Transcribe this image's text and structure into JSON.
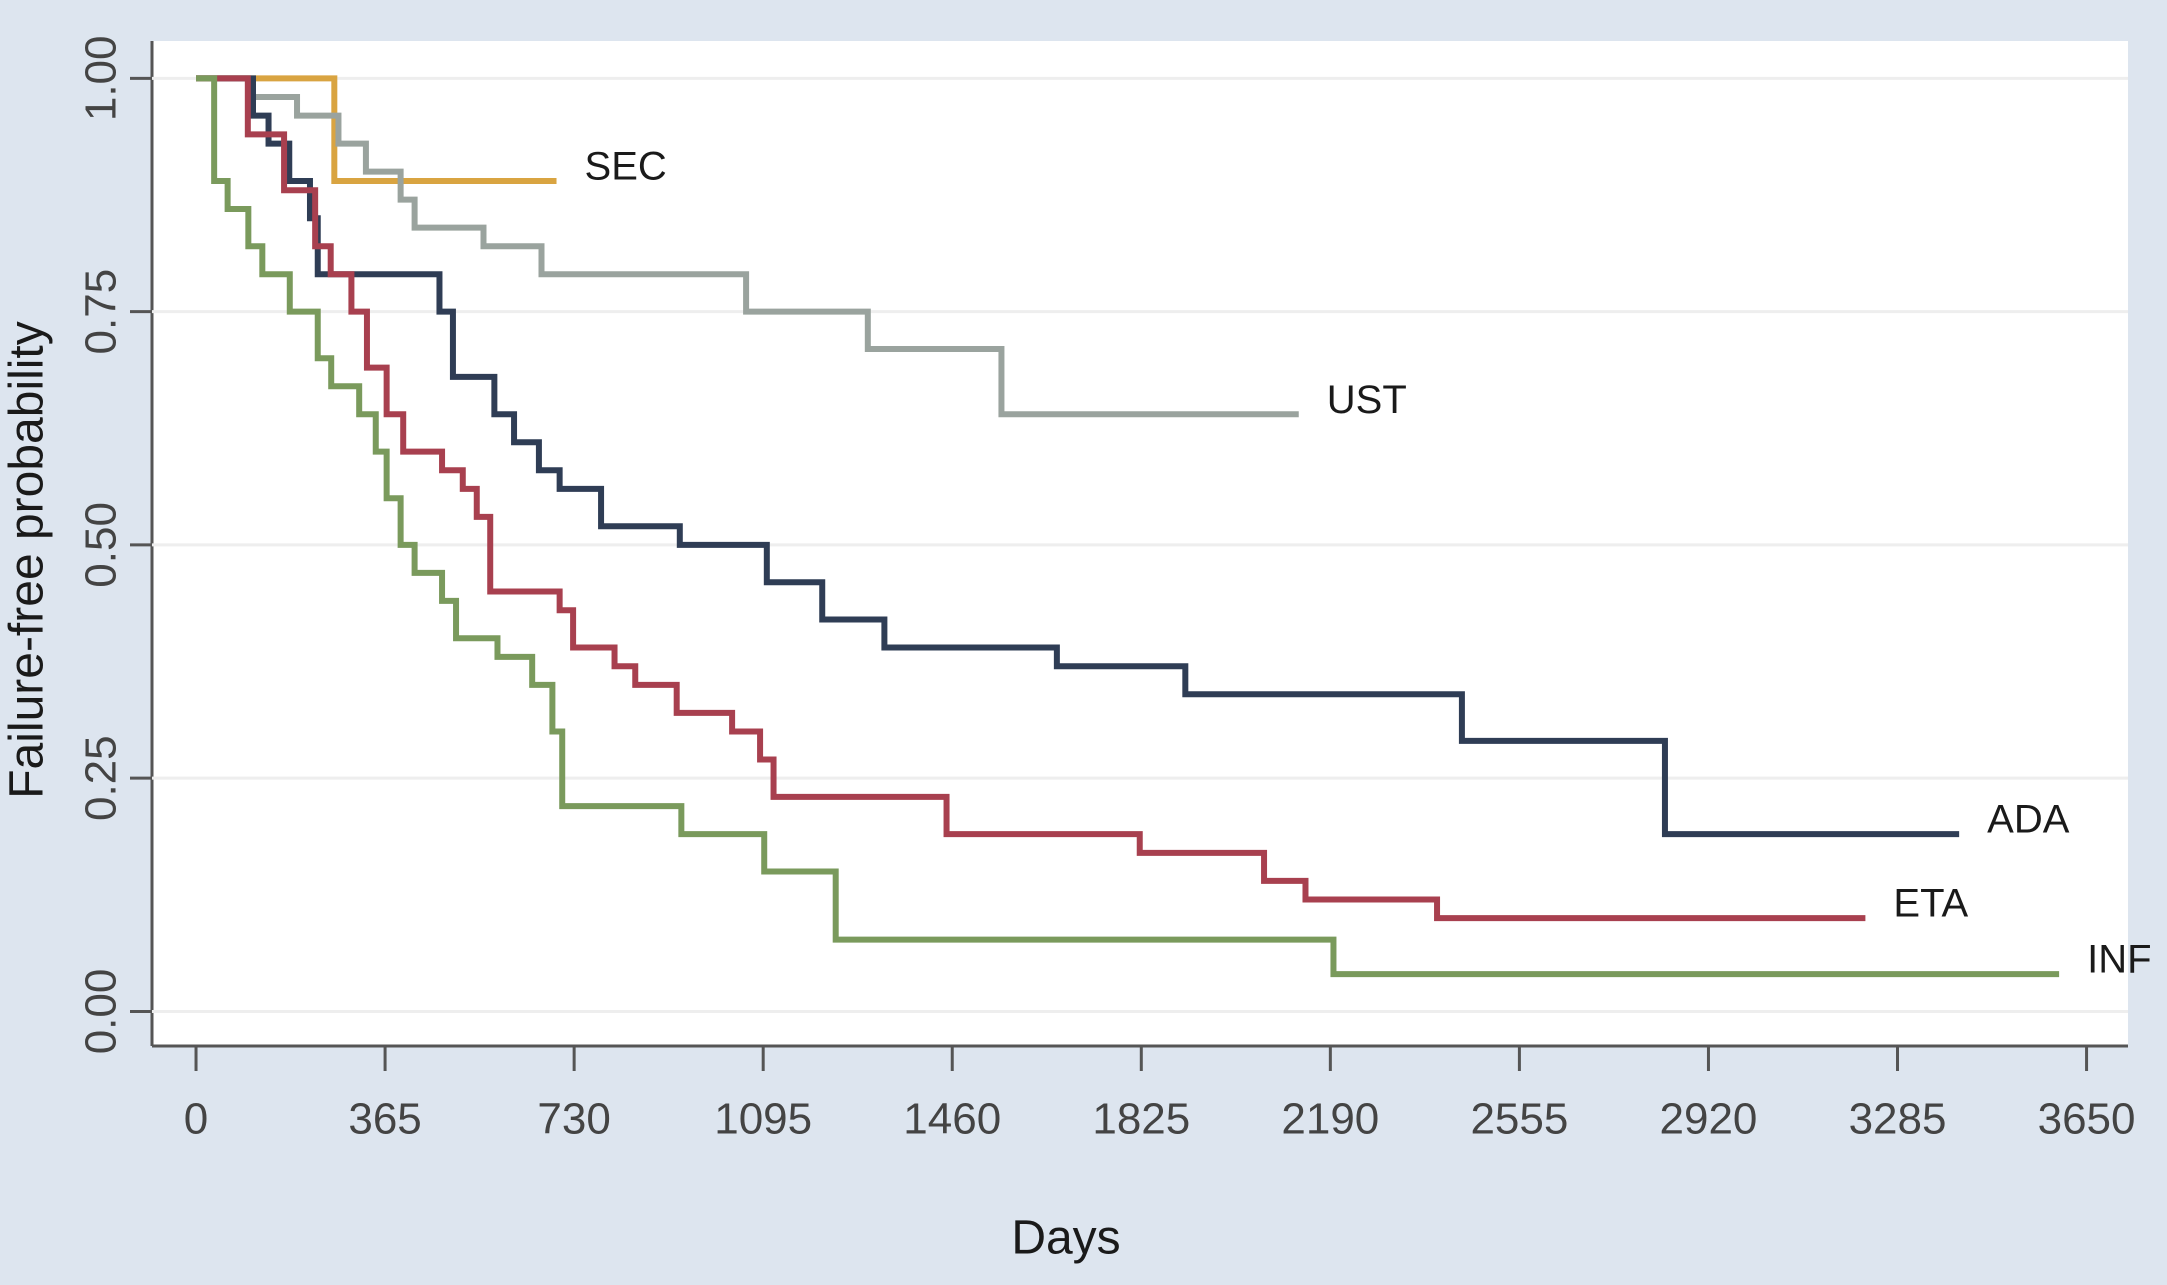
{
  "chart_data": {
    "type": "step",
    "x_label": "Days",
    "y_label": "Failure-free probability",
    "xlim": [
      -85,
      3730
    ],
    "ylim": [
      -0.037,
      1.04
    ],
    "xticks": [
      0,
      365,
      730,
      1095,
      1460,
      1825,
      2190,
      2555,
      2920,
      3285,
      3650
    ],
    "yticks": [
      {
        "value": 0,
        "label": "0.00"
      },
      {
        "value": 0.25,
        "label": "0.25"
      },
      {
        "value": 0.5,
        "label": "0.50"
      },
      {
        "value": 0.75,
        "label": "0.75"
      },
      {
        "value": 1,
        "label": "1.00"
      }
    ],
    "grid": true,
    "series": [
      {
        "name": "SEC",
        "color": "#d9a441",
        "x": [
          0,
          267,
          696
        ],
        "values": [
          1,
          0.89,
          0.89
        ]
      },
      {
        "name": "UST",
        "color": "#9aa39e",
        "x": [
          0,
          101,
          195,
          275,
          328,
          395,
          422,
          555,
          667,
          1062,
          1297,
          1555,
          2129
        ],
        "values": [
          1,
          0.98,
          0.96,
          0.93,
          0.9,
          0.87,
          0.84,
          0.82,
          0.79,
          0.75,
          0.71,
          0.64,
          0.64
        ]
      },
      {
        "name": "ADA",
        "color": "#2f3d55",
        "x": [
          0,
          110,
          140,
          180,
          220,
          235,
          470,
          496,
          576,
          614,
          662,
          702,
          782,
          934,
          1102,
          1209,
          1329,
          1662,
          1910,
          2444,
          2836,
          3404
        ],
        "values": [
          1,
          0.96,
          0.93,
          0.89,
          0.85,
          0.79,
          0.75,
          0.68,
          0.64,
          0.61,
          0.58,
          0.56,
          0.52,
          0.5,
          0.46,
          0.42,
          0.39,
          0.37,
          0.34,
          0.29,
          0.19,
          0.19
        ]
      },
      {
        "name": "ETA",
        "color": "#a8404f",
        "x": [
          0,
          100,
          170,
          230,
          260,
          300,
          330,
          368,
          400,
          475,
          515,
          542,
          568,
          702,
          728,
          808,
          848,
          928,
          1035,
          1089,
          1115,
          1449,
          1822,
          2062,
          2142,
          2396,
          3223
        ],
        "values": [
          1,
          0.94,
          0.88,
          0.82,
          0.79,
          0.75,
          0.69,
          0.64,
          0.6,
          0.58,
          0.56,
          0.53,
          0.45,
          0.43,
          0.39,
          0.37,
          0.35,
          0.32,
          0.3,
          0.27,
          0.23,
          0.19,
          0.17,
          0.14,
          0.12,
          0.1,
          0.1
        ]
      },
      {
        "name": "INF",
        "color": "#7a9a5c",
        "x": [
          0,
          35,
          61,
          101,
          128,
          181,
          235,
          261,
          315,
          347,
          368,
          395,
          422,
          475,
          502,
          582,
          649,
          688,
          707,
          937,
          1097,
          1235,
          2196,
          3597
        ],
        "values": [
          1,
          0.89,
          0.86,
          0.82,
          0.79,
          0.75,
          0.7,
          0.67,
          0.64,
          0.6,
          0.55,
          0.5,
          0.47,
          0.44,
          0.4,
          0.38,
          0.35,
          0.3,
          0.22,
          0.19,
          0.15,
          0.077,
          0.04,
          0.04
        ]
      }
    ]
  }
}
